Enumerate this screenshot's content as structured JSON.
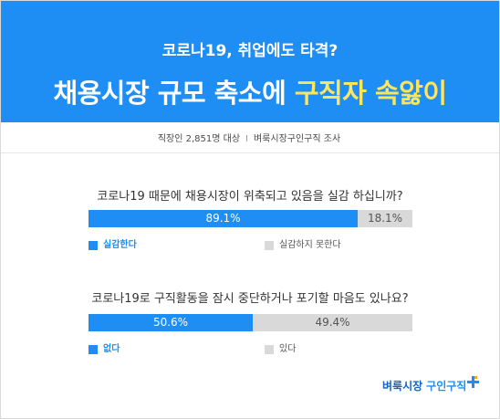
{
  "header": {
    "subtitle": "코로나19, 취업에도 타격?",
    "title_main": "채용시장 규모 축소에 ",
    "title_highlight": "구직자 속앓이"
  },
  "meta": {
    "sample": "직장인 2,851명 대상",
    "separator": "I",
    "source": "벼룩시장구인구직 조사"
  },
  "chart_data": [
    {
      "type": "bar",
      "title": "코로나19 때문에 채용시장이 위축되고 있음을 실감 하십니까?",
      "series": [
        {
          "name": "실감한다",
          "value": 89.1,
          "label": "89.1%"
        },
        {
          "name": "실감하지 못한다",
          "value": 18.1,
          "label": "18.1%"
        }
      ]
    },
    {
      "type": "bar",
      "title": "코로나19로 구직활동을 잠시 중단하거나 포기할 마음도 있나요?",
      "series": [
        {
          "name": "없다",
          "value": 50.6,
          "label": "50.6%"
        },
        {
          "name": "있다",
          "value": 49.4,
          "label": "49.4%"
        }
      ]
    }
  ],
  "colors": {
    "accent": "#1e8ef4",
    "highlight": "#ffe55c",
    "neutral": "#d9d9d9"
  },
  "logo": {
    "part1": "벼룩시장",
    "part2": "구인구직",
    "icon": "plus-sparkle-icon"
  }
}
